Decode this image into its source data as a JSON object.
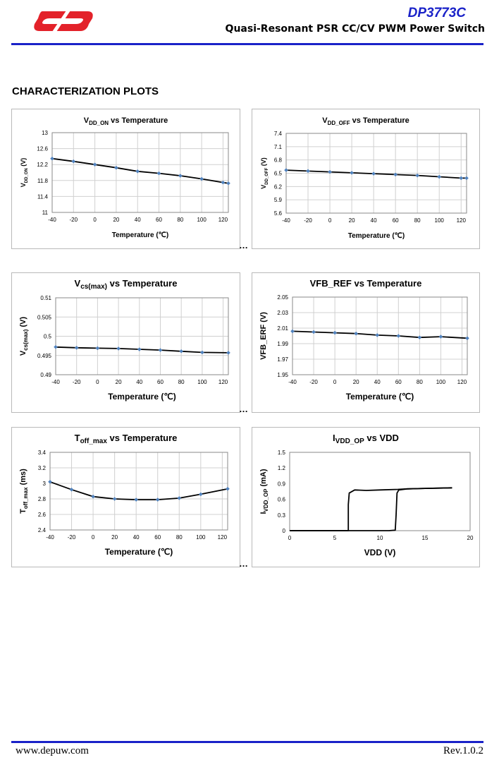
{
  "header": {
    "part_number": "DP3773C",
    "subtitle": "Quasi-Resonant PSR CC/CV PWM Power Switch",
    "logo_color": "#e3222a",
    "accent_color": "#1a22c8"
  },
  "section_title": "CHARACTERIZATION PLOTS",
  "ellipsis": "…",
  "footer": {
    "url": "www.depuw.com",
    "revision": "Rev.1.0.2"
  },
  "chart_data": [
    {
      "id": "c1",
      "type": "line",
      "title": {
        "main": "V",
        "sub": "DD_ON",
        "rest": " vs Temperature"
      },
      "xlabel": "Temperature (℃)",
      "ylabel": {
        "main": "V",
        "sub": "DD_ON",
        "rest": " (V)"
      },
      "xlim": [
        -40,
        125
      ],
      "ylim": [
        11,
        13
      ],
      "xticks": [
        -40,
        -20,
        0,
        20,
        40,
        60,
        80,
        100,
        120
      ],
      "yticks": [
        11,
        11.4,
        11.8,
        12.2,
        12.6,
        13
      ],
      "grid": true,
      "markers": true,
      "line_color": "#000000",
      "marker_color": "#4f81bd",
      "x": [
        -40,
        -20,
        0,
        20,
        40,
        60,
        80,
        100,
        120,
        125
      ],
      "y": [
        12.35,
        12.28,
        12.2,
        12.12,
        12.03,
        11.98,
        11.92,
        11.84,
        11.75,
        11.73
      ]
    },
    {
      "id": "c2",
      "type": "line",
      "title": {
        "main": "V",
        "sub": "DD_OFF",
        "rest": "  vs Temperature"
      },
      "xlabel": "Temperature (℃)",
      "ylabel": {
        "main": "V",
        "sub": "DD_OFF",
        "rest": " (V)"
      },
      "xlim": [
        -40,
        125
      ],
      "ylim": [
        5.6,
        7.4
      ],
      "xticks": [
        -40,
        -20,
        0,
        20,
        40,
        60,
        80,
        100,
        120
      ],
      "yticks": [
        5.6,
        5.9,
        6.2,
        6.5,
        6.8,
        7.1,
        7.4
      ],
      "grid": true,
      "markers": true,
      "line_color": "#000000",
      "marker_color": "#4f81bd",
      "x": [
        -40,
        -20,
        0,
        20,
        40,
        60,
        80,
        100,
        120,
        125
      ],
      "y": [
        6.57,
        6.55,
        6.53,
        6.51,
        6.49,
        6.47,
        6.45,
        6.42,
        6.39,
        6.39
      ]
    },
    {
      "id": "c3",
      "type": "line",
      "title": {
        "main": "V",
        "sub": "cs(max)",
        "rest": " vs Temperature"
      },
      "xlabel": "Temperature (℃)",
      "ylabel": {
        "main": "V",
        "sub": "cs(max)",
        "rest": " (V)"
      },
      "xlim": [
        -40,
        125
      ],
      "ylim": [
        0.49,
        0.51
      ],
      "xticks": [
        -40,
        -20,
        0,
        20,
        40,
        60,
        80,
        100,
        120
      ],
      "yticks": [
        0.49,
        0.495,
        0.5,
        0.505,
        0.51
      ],
      "yticklabels": [
        "0.49",
        "0.495",
        "0.5",
        "0.505",
        "0.51"
      ],
      "grid": true,
      "markers": true,
      "line_color": "#000000",
      "marker_color": "#4f81bd",
      "x": [
        -40,
        -20,
        0,
        20,
        40,
        60,
        80,
        100,
        125
      ],
      "y": [
        0.4972,
        0.497,
        0.4969,
        0.4968,
        0.4966,
        0.4964,
        0.4961,
        0.4958,
        0.4957
      ]
    },
    {
      "id": "c4",
      "type": "line",
      "title": {
        "main": "VFB_REF",
        "sub": "",
        "rest": " vs Temperature"
      },
      "xlabel": "Temperature (℃)",
      "ylabel": {
        "main": "VFB_ERF (V)",
        "sub": "",
        "rest": ""
      },
      "xlim": [
        -40,
        125
      ],
      "ylim": [
        1.95,
        2.05
      ],
      "xticks": [
        -40,
        -20,
        0,
        20,
        40,
        60,
        80,
        100,
        120
      ],
      "yticks": [
        1.95,
        1.97,
        1.99,
        2.01,
        2.03,
        2.05
      ],
      "grid": true,
      "markers": true,
      "line_color": "#000000",
      "marker_color": "#4f81bd",
      "x": [
        -40,
        -20,
        0,
        20,
        40,
        60,
        80,
        100,
        125
      ],
      "y": [
        2.006,
        2.005,
        2.004,
        2.003,
        2.001,
        2.0,
        1.998,
        1.999,
        1.997
      ]
    },
    {
      "id": "c5",
      "type": "line",
      "title": {
        "main": "T",
        "sub": "off_max",
        "rest": " vs Temperature"
      },
      "xlabel": "Temperature (℃)",
      "ylabel": {
        "main": "T",
        "sub": "off_max",
        "rest": " (ms)"
      },
      "xlim": [
        -40,
        125
      ],
      "ylim": [
        2.4,
        3.4
      ],
      "xticks": [
        -40,
        -20,
        0,
        20,
        40,
        60,
        80,
        100,
        120
      ],
      "yticks": [
        2.4,
        2.6,
        2.8,
        3,
        3.2,
        3.4
      ],
      "grid": true,
      "markers": true,
      "line_color": "#000000",
      "marker_color": "#4f81bd",
      "x": [
        -40,
        -20,
        0,
        20,
        40,
        60,
        80,
        100,
        125
      ],
      "y": [
        3.02,
        2.92,
        2.83,
        2.8,
        2.79,
        2.79,
        2.81,
        2.86,
        2.93
      ]
    },
    {
      "id": "c6",
      "type": "line",
      "title": {
        "main": "I",
        "sub": "VDD_OP",
        "rest": " vs VDD"
      },
      "xlabel": "VDD (V)",
      "ylabel": {
        "main": "I",
        "sub": "VDD_OP",
        "rest": " (mA)"
      },
      "xlim": [
        0,
        20
      ],
      "ylim": [
        0,
        1.5
      ],
      "xticks": [
        0,
        5,
        10,
        15,
        20
      ],
      "yticks": [
        0,
        0.3,
        0.6,
        0.9,
        1.2,
        1.5
      ],
      "grid": false,
      "markers": false,
      "line_color": "#000000",
      "series": [
        {
          "x": [
            0,
            6.5,
            6.5,
            6.6,
            7.2,
            8.5,
            10,
            12,
            13,
            15,
            18
          ],
          "y": [
            0,
            0,
            0.5,
            0.72,
            0.78,
            0.77,
            0.78,
            0.79,
            0.8,
            0.81,
            0.82
          ]
        },
        {
          "x": [
            0,
            11,
            11.7,
            11.8,
            11.9,
            12.1,
            13,
            15,
            18
          ],
          "y": [
            0,
            0,
            0.01,
            0.3,
            0.72,
            0.78,
            0.8,
            0.81,
            0.82
          ]
        }
      ]
    }
  ]
}
